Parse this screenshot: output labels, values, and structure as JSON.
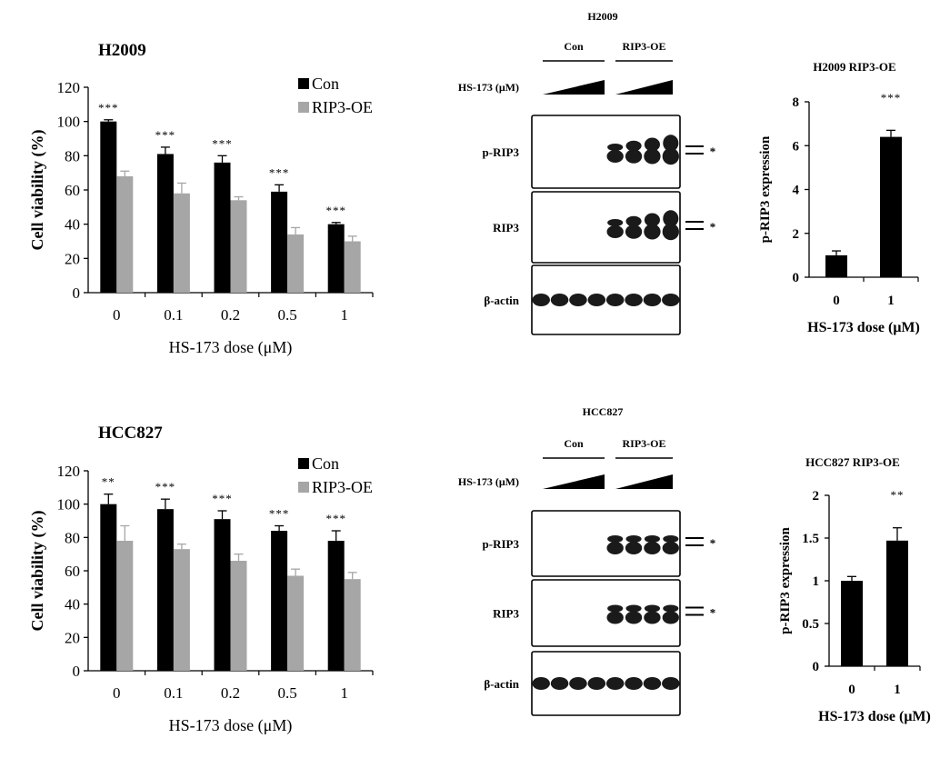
{
  "figure": {
    "panels": {
      "viab_top": {
        "title": "H2009",
        "xlabel": "HS-173 dose (μM)",
        "ylabel": "Cell viability (%)",
        "sig": [
          "***",
          "***",
          "***",
          "***",
          "***"
        ]
      },
      "viab_bot": {
        "title": "HCC827",
        "xlabel": "HS-173 dose (μM)",
        "ylabel": "Cell viability (%)",
        "sig": [
          "**",
          "***",
          "***",
          "***",
          "***"
        ]
      },
      "blot_top": {
        "title": "H2009",
        "groups": [
          "Con",
          "RIP3-OE"
        ],
        "dose_label": "HS-173 (μM)",
        "rows": [
          "p-RIP3",
          "RIP3",
          "β-actin"
        ],
        "marker": "*"
      },
      "blot_bot": {
        "title": "HCC827",
        "groups": [
          "Con",
          "RIP3-OE"
        ],
        "dose_label": "HS-173 (μM)",
        "rows": [
          "p-RIP3",
          "RIP3",
          "β-actin"
        ],
        "marker": "*"
      },
      "quant_top": {
        "title": "H2009 RIP3-OE",
        "xlabel": "HS-173 dose (μM)",
        "ylabel": "p-RIP3 expression",
        "sig": "***"
      },
      "quant_bot": {
        "title": "HCC827 RIP3-OE",
        "xlabel": "HS-173 dose (μM)",
        "ylabel": "p-RIP3 expression",
        "sig": "**"
      }
    }
  },
  "colors": {
    "con": "#000000",
    "rip3oe": "#a6a6a6",
    "band": "#1a1a1a"
  },
  "chart_data": [
    {
      "id": "viab_top",
      "type": "bar",
      "title": "H2009",
      "categories": [
        "0",
        "0.1",
        "0.2",
        "0.5",
        "1"
      ],
      "series": [
        {
          "name": "Con",
          "values": [
            100,
            81,
            76,
            59,
            40
          ],
          "errors": [
            1,
            4,
            4,
            4,
            1
          ]
        },
        {
          "name": "RIP3-OE",
          "values": [
            68,
            58,
            54,
            34,
            30
          ],
          "errors": [
            3,
            6,
            2,
            4,
            3
          ]
        }
      ],
      "xlabel": "HS-173 dose (μM)",
      "ylabel": "Cell viability (%)",
      "ylim": [
        0,
        120
      ],
      "yticks": [
        0,
        20,
        40,
        60,
        80,
        100,
        120
      ],
      "legend": "top-right",
      "annotations": [
        "***",
        "***",
        "***",
        "***",
        "***"
      ]
    },
    {
      "id": "viab_bot",
      "type": "bar",
      "title": "HCC827",
      "categories": [
        "0",
        "0.1",
        "0.2",
        "0.5",
        "1"
      ],
      "series": [
        {
          "name": "Con",
          "values": [
            100,
            97,
            91,
            84,
            78
          ],
          "errors": [
            6,
            6,
            5,
            3,
            6
          ]
        },
        {
          "name": "RIP3-OE",
          "values": [
            78,
            73,
            66,
            57,
            55
          ],
          "errors": [
            9,
            3,
            4,
            4,
            4
          ]
        }
      ],
      "xlabel": "HS-173 dose (μM)",
      "ylabel": "Cell viability (%)",
      "ylim": [
        0,
        120
      ],
      "yticks": [
        0,
        20,
        40,
        60,
        80,
        100,
        120
      ],
      "legend": "top-right",
      "annotations": [
        "**",
        "***",
        "***",
        "***",
        "***"
      ]
    },
    {
      "id": "quant_top",
      "type": "bar",
      "title": "H2009 RIP3-OE",
      "categories": [
        "0",
        "1"
      ],
      "series": [
        {
          "name": "p-RIP3",
          "values": [
            1.0,
            6.4
          ],
          "errors": [
            0.2,
            0.3
          ]
        }
      ],
      "xlabel": "HS-173 dose (μM)",
      "ylabel": "p-RIP3 expression",
      "ylim": [
        0,
        8
      ],
      "yticks": [
        0,
        2,
        4,
        6,
        8
      ],
      "annotations": [
        "",
        "***"
      ]
    },
    {
      "id": "quant_bot",
      "type": "bar",
      "title": "HCC827 RIP3-OE",
      "categories": [
        "0",
        "1"
      ],
      "series": [
        {
          "name": "p-RIP3",
          "values": [
            1.0,
            1.47
          ],
          "errors": [
            0.05,
            0.15
          ]
        }
      ],
      "xlabel": "HS-173 dose (μM)",
      "ylabel": "p-RIP3 expression",
      "ylim": [
        0,
        2
      ],
      "yticks": [
        0,
        0.5,
        1,
        1.5,
        2
      ],
      "annotations": [
        "",
        "**"
      ]
    }
  ]
}
